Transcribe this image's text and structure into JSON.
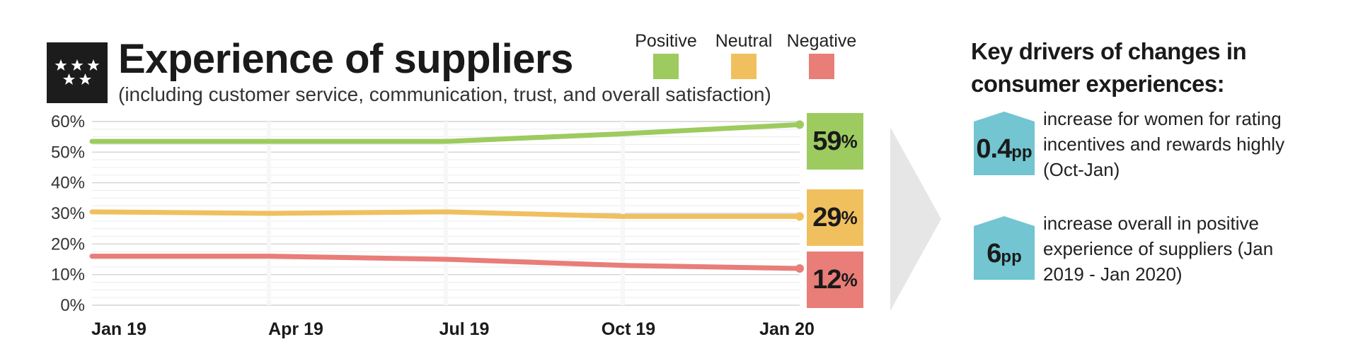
{
  "header": {
    "title": "Experience of suppliers",
    "subtitle": "(including customer service, communication, trust, and overall satisfaction)"
  },
  "legend": [
    {
      "label": "Positive",
      "color": "#9dcb5f"
    },
    {
      "label": "Neutral",
      "color": "#f0c05f"
    },
    {
      "label": "Negative",
      "color": "#e97d78"
    }
  ],
  "chart_data": {
    "type": "line",
    "title": "Experience of suppliers",
    "subtitle": "(including customer service, communication, trust, and overall satisfaction)",
    "categories": [
      "Jan 19",
      "Apr 19",
      "Jul 19",
      "Oct 19",
      "Jan  20"
    ],
    "yticks": [
      "0%",
      "10%",
      "20%",
      "30%",
      "40%",
      "50%",
      "60%"
    ],
    "ylim": [
      0,
      60
    ],
    "grid": true,
    "legend_position": "top-right",
    "series": [
      {
        "name": "Positive",
        "color": "#9dcb5f",
        "values": [
          53.5,
          53.5,
          53.5,
          56,
          59
        ],
        "end_label": "59",
        "end_unit": "%"
      },
      {
        "name": "Neutral",
        "color": "#f0c05f",
        "values": [
          30.5,
          30,
          30.5,
          29,
          29
        ],
        "end_label": "29",
        "end_unit": "%"
      },
      {
        "name": "Negative",
        "color": "#e97d78",
        "values": [
          16,
          16,
          15,
          13,
          12
        ],
        "end_label": "12",
        "end_unit": "%"
      }
    ]
  },
  "drivers": {
    "title": "Key drivers of changes in consumer experiences:",
    "badge_color": "#72c5d1",
    "items": [
      {
        "value": "0.4",
        "unit": "pp",
        "text": "increase for women for rating incentives and rewards highly (Oct-Jan)"
      },
      {
        "value": "6",
        "unit": "pp",
        "text": "increase overall in positive experience of suppliers (Jan 2019 - Jan 2020)"
      }
    ]
  }
}
